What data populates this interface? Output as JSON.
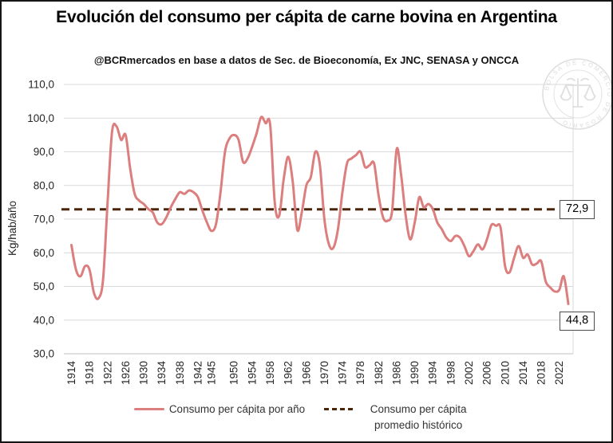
{
  "chart_data": {
    "type": "line",
    "title": "Evolución del consumo per cápita de carne bovina en Argentina",
    "subtitle": "@BCRmercados en base a datos de Sec. de Bioeconomía,  Ex JNC, SENASA y ONCCA",
    "ylabel": "Kg/hab/año",
    "xlabel": "",
    "ylim": [
      30,
      110
    ],
    "ytick_step": 10,
    "ytick_labels": [
      "110,0",
      "100,0",
      "90,0",
      "80,0",
      "70,0",
      "60,0",
      "50,0",
      "40,0",
      "30,0"
    ],
    "xtick_labels": [
      "1914",
      "1918",
      "1922",
      "1926",
      "1930",
      "1934",
      "1938",
      "1942",
      "1945",
      "1950",
      "1954",
      "1958",
      "1962",
      "1966",
      "1970",
      "1974",
      "1978",
      "1982",
      "1986",
      "1990",
      "1994",
      "1998",
      "2002",
      "2006",
      "2010",
      "2014",
      "2018",
      "2022"
    ],
    "x_start_year": 1914,
    "x_end_year": 2024,
    "grid": "horizontal",
    "grid_color": "#d9d9d9",
    "legend_position": "bottom",
    "series": [
      {
        "name": "Consumo per cápita por año",
        "color": "#dc7e7e",
        "style": "solid",
        "start_year": 1914,
        "values": [
          62.3,
          55.0,
          53.0,
          56.0,
          55.0,
          48.0,
          46.5,
          52.0,
          75.0,
          96.0,
          97.5,
          93.5,
          95.0,
          85.0,
          77.5,
          75.5,
          74.5,
          73.0,
          72.0,
          69.0,
          68.5,
          70.5,
          73.5,
          76.0,
          78.0,
          77.5,
          78.5,
          78.0,
          76.5,
          72.5,
          69.0,
          66.5,
          68.5,
          78.0,
          90.0,
          94.0,
          95.0,
          93.5,
          87.0,
          88.0,
          91.5,
          95.5,
          100.3,
          98.5,
          98.0,
          75.0,
          71.0,
          82.0,
          88.5,
          81.0,
          66.8,
          72.0,
          80.0,
          82.5,
          90.0,
          86.0,
          70.0,
          62.5,
          61.5,
          67.0,
          78.0,
          86.5,
          88.0,
          89.0,
          90.0,
          85.5,
          86.0,
          86.5,
          77.0,
          70.5,
          69.5,
          72.5,
          90.8,
          83.0,
          71.0,
          64.0,
          69.0,
          76.5,
          73.5,
          74.5,
          73.0,
          69.0,
          67.0,
          64.5,
          63.5,
          65.0,
          64.5,
          62.0,
          59.0,
          60.5,
          62.5,
          61.0,
          64.0,
          68.3,
          68.0,
          67.5,
          56.0,
          54.2,
          58.5,
          62.0,
          58.5,
          59.5,
          56.5,
          56.8,
          57.5,
          51.5,
          49.7,
          48.5,
          49.0,
          53.0,
          44.8
        ]
      },
      {
        "name": "Consumo per cápita promedio histórico",
        "color": "#4a2508",
        "style": "dashed",
        "value": 72.9
      }
    ],
    "annotations": [
      {
        "label": "72,9",
        "value": 72.9,
        "target": "average-line"
      },
      {
        "label": "44,8",
        "value": 44.8,
        "year": 2024,
        "target": "last-point"
      }
    ]
  },
  "watermark": {
    "text": "BOLSA DE COMERCIO DE ROSARIO",
    "icon": "scales-icon"
  }
}
